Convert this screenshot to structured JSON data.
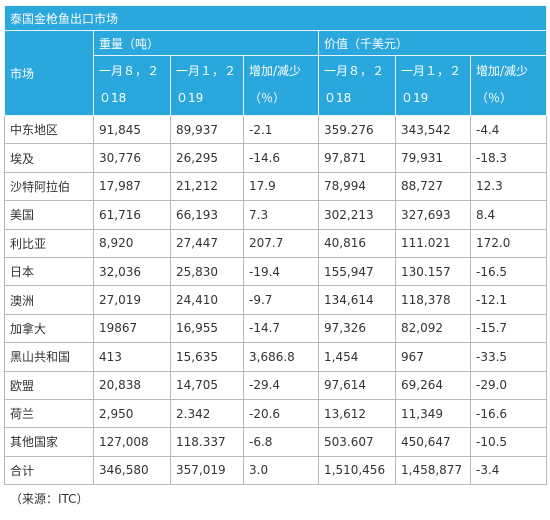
{
  "title": "泰国金枪鱼出口市场",
  "header": {
    "market": "市场",
    "weight": "重量（吨）",
    "value": "价值（千美元）",
    "sub": [
      "一月８，２０18",
      "一月１，２０19",
      "增加/减少（％）",
      "一月８，２０18",
      "一月１，２０19",
      "增加/减少（％）"
    ]
  },
  "table": {
    "rows": [
      [
        "中东地区",
        "91,845",
        "89,937",
        "-2.1",
        "359.276",
        "343,542",
        "-4.4"
      ],
      [
        "埃及",
        "30,776",
        "26,295",
        "-14.6",
        "97,871",
        "79,931",
        "-18.3"
      ],
      [
        "沙特阿拉伯",
        "17,987",
        "21,212",
        "17.9",
        "78,994",
        "88,727",
        "12.3"
      ],
      [
        "美国",
        "61,716",
        "66,193",
        "7.3",
        "302,213",
        "327,693",
        "8.4"
      ],
      [
        "利比亚",
        "8,920",
        "27,447",
        "207.7",
        "40,816",
        "111.021",
        "172.0"
      ],
      [
        "日本",
        "32,036",
        "25,830",
        "-19.4",
        "155,947",
        "130.157",
        "-16.5"
      ],
      [
        "澳洲",
        "27,019",
        "24,410",
        "-9.7",
        "134,614",
        "118,378",
        "-12.1"
      ],
      [
        "加拿大",
        "19867",
        "16,955",
        "-14.7",
        "97,326",
        "82,092",
        "-15.7"
      ],
      [
        "黑山共和国",
        "413",
        "15,635",
        "3,686.8",
        "1,454",
        "967",
        "-33.5"
      ],
      [
        "欧盟",
        "20,838",
        "14,705",
        "-29.4",
        "97,614",
        "69,264",
        "-29.0"
      ],
      [
        "荷兰",
        "2,950",
        "2.342",
        "-20.6",
        "13,612",
        "11,349",
        "-16.6"
      ],
      [
        "其他国家",
        "127,008",
        "118.337",
        "-6.8",
        "503.607",
        "450,647",
        "-10.5"
      ],
      [
        "合计",
        "346,580",
        "357,019",
        "3.0",
        "1,510,456",
        "1,458,877",
        "-3.4"
      ]
    ]
  },
  "source": "（来源：ITC）"
}
